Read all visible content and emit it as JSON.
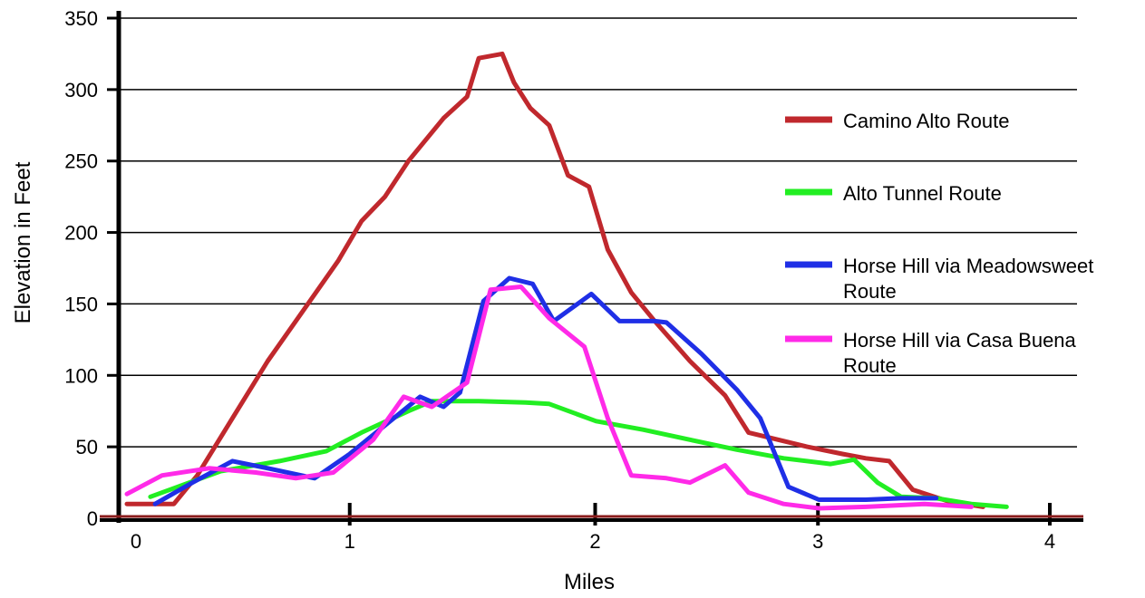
{
  "chart_data": {
    "type": "line",
    "xlabel": "Miles",
    "ylabel": "Elevation in Feet",
    "xlim": [
      0,
      4
    ],
    "ylim": [
      0,
      350
    ],
    "x_ticks": [
      "0",
      "1",
      "2",
      "3",
      "4"
    ],
    "y_ticks": [
      "0",
      "50",
      "100",
      "150",
      "200",
      "250",
      "300",
      "350"
    ],
    "grid": "horizontal",
    "legend_position": "right",
    "series": [
      {
        "name": "Camino Alto Route",
        "color": "#c0282d",
        "points": [
          [
            0.0,
            10
          ],
          [
            0.2,
            10
          ],
          [
            0.3,
            30
          ],
          [
            0.45,
            70
          ],
          [
            0.6,
            110
          ],
          [
            0.75,
            145
          ],
          [
            0.9,
            180
          ],
          [
            1.0,
            208
          ],
          [
            1.1,
            225
          ],
          [
            1.2,
            250
          ],
          [
            1.35,
            280
          ],
          [
            1.45,
            295
          ],
          [
            1.5,
            322
          ],
          [
            1.6,
            325
          ],
          [
            1.65,
            305
          ],
          [
            1.72,
            287
          ],
          [
            1.8,
            275
          ],
          [
            1.88,
            240
          ],
          [
            1.97,
            232
          ],
          [
            2.05,
            188
          ],
          [
            2.15,
            158
          ],
          [
            2.25,
            138
          ],
          [
            2.4,
            110
          ],
          [
            2.55,
            86
          ],
          [
            2.65,
            60
          ],
          [
            2.75,
            56
          ],
          [
            2.9,
            50
          ],
          [
            3.05,
            45
          ],
          [
            3.15,
            42
          ],
          [
            3.25,
            40
          ],
          [
            3.35,
            20
          ],
          [
            3.5,
            12
          ],
          [
            3.65,
            8
          ]
        ]
      },
      {
        "name": "Alto Tunnel Route",
        "color": "#22ee22",
        "points": [
          [
            0.1,
            15
          ],
          [
            0.4,
            33
          ],
          [
            0.65,
            40
          ],
          [
            0.85,
            47
          ],
          [
            1.0,
            60
          ],
          [
            1.2,
            75
          ],
          [
            1.3,
            82
          ],
          [
            1.5,
            82
          ],
          [
            1.7,
            81
          ],
          [
            1.8,
            80
          ],
          [
            2.0,
            68
          ],
          [
            2.2,
            62
          ],
          [
            2.4,
            55
          ],
          [
            2.6,
            48
          ],
          [
            2.8,
            42
          ],
          [
            3.0,
            38
          ],
          [
            3.1,
            41
          ],
          [
            3.2,
            25
          ],
          [
            3.3,
            15
          ],
          [
            3.45,
            14
          ],
          [
            3.6,
            10
          ],
          [
            3.75,
            8
          ]
        ]
      },
      {
        "name": "Horse Hill via Meadowsweet Route",
        "color": "#1f2fe6",
        "points": [
          [
            0.12,
            10
          ],
          [
            0.28,
            25
          ],
          [
            0.45,
            40
          ],
          [
            0.6,
            35
          ],
          [
            0.8,
            28
          ],
          [
            0.95,
            45
          ],
          [
            1.1,
            65
          ],
          [
            1.25,
            85
          ],
          [
            1.35,
            78
          ],
          [
            1.42,
            88
          ],
          [
            1.52,
            152
          ],
          [
            1.63,
            168
          ],
          [
            1.73,
            164
          ],
          [
            1.82,
            138
          ],
          [
            1.98,
            157
          ],
          [
            2.1,
            138
          ],
          [
            2.25,
            138
          ],
          [
            2.3,
            137
          ],
          [
            2.45,
            115
          ],
          [
            2.6,
            90
          ],
          [
            2.7,
            70
          ],
          [
            2.82,
            22
          ],
          [
            2.95,
            13
          ],
          [
            3.15,
            13
          ],
          [
            3.3,
            14
          ],
          [
            3.45,
            14
          ]
        ]
      },
      {
        "name": "Horse Hill via Casa Buena Route",
        "color": "#ff2ae8",
        "points": [
          [
            0.0,
            17
          ],
          [
            0.15,
            30
          ],
          [
            0.35,
            35
          ],
          [
            0.55,
            32
          ],
          [
            0.72,
            28
          ],
          [
            0.88,
            32
          ],
          [
            1.05,
            55
          ],
          [
            1.18,
            85
          ],
          [
            1.3,
            78
          ],
          [
            1.45,
            95
          ],
          [
            1.55,
            160
          ],
          [
            1.68,
            162
          ],
          [
            1.8,
            140
          ],
          [
            1.95,
            120
          ],
          [
            2.05,
            70
          ],
          [
            2.15,
            30
          ],
          [
            2.3,
            28
          ],
          [
            2.4,
            25
          ],
          [
            2.55,
            37
          ],
          [
            2.65,
            18
          ],
          [
            2.8,
            10
          ],
          [
            2.95,
            7
          ],
          [
            3.15,
            8
          ],
          [
            3.4,
            10
          ],
          [
            3.6,
            8
          ]
        ]
      }
    ]
  }
}
